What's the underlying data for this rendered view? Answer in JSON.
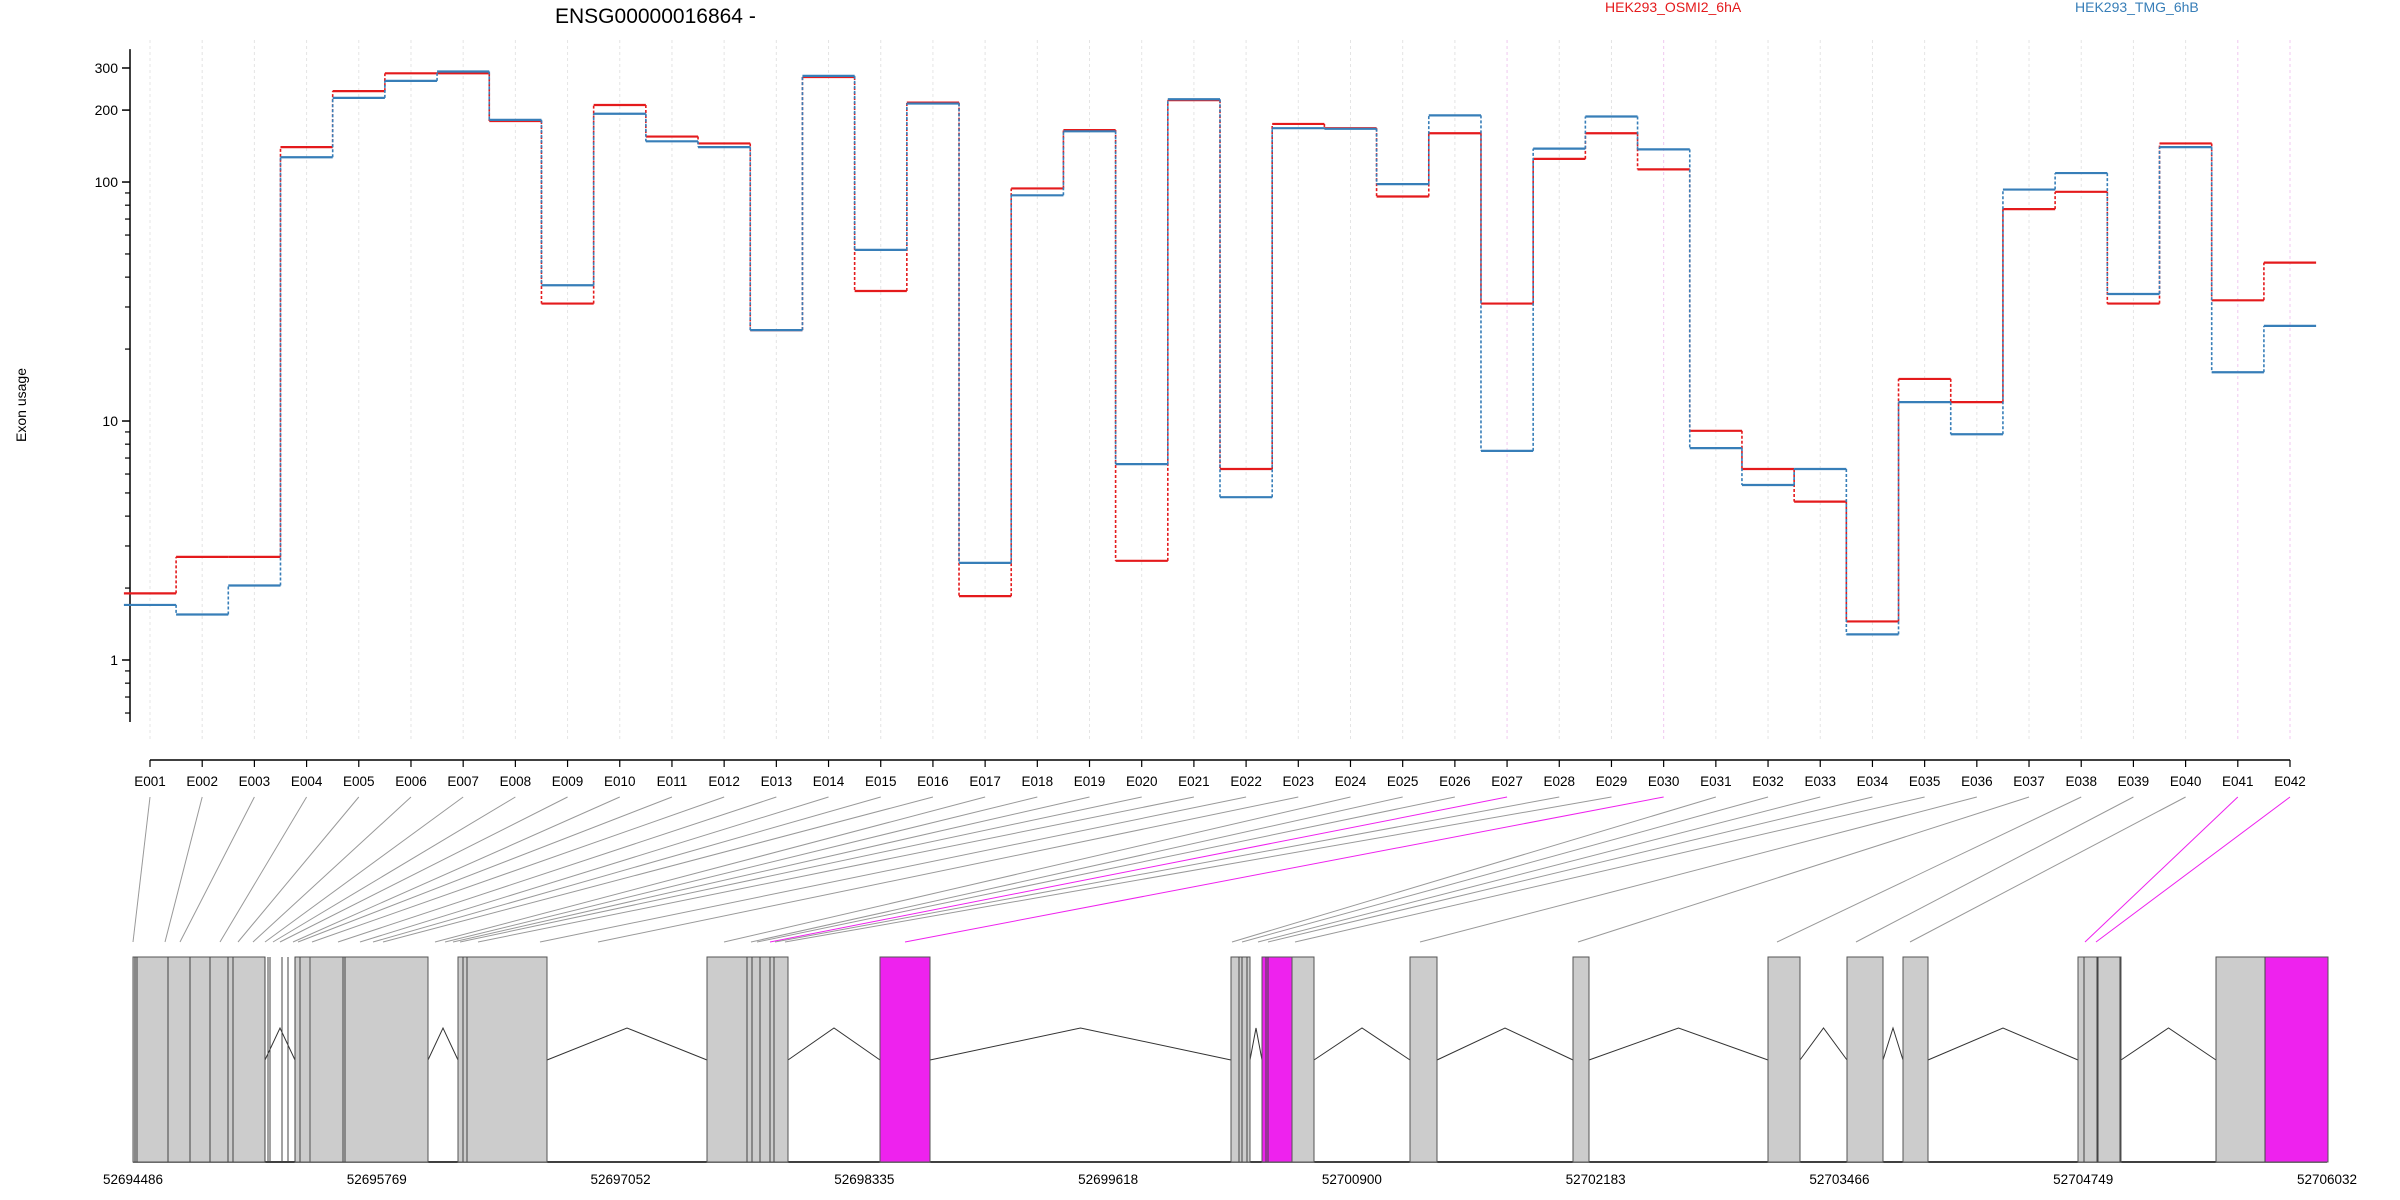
{
  "chart_data": {
    "type": "line",
    "title": "ENSG00000016864 -",
    "ylabel": "Exon usage",
    "xlabel": "",
    "y_scale": "log",
    "ylim": [
      0.55,
      360
    ],
    "yticks": [
      "1",
      "10",
      "100",
      "200",
      "300"
    ],
    "grid": "vertical dotted lines at each exon",
    "legend_position": "top",
    "categories": [
      "E001",
      "E002",
      "E003",
      "E004",
      "E005",
      "E006",
      "E007",
      "E008",
      "E009",
      "E010",
      "E011",
      "E012",
      "E013",
      "E014",
      "E015",
      "E016",
      "E017",
      "E018",
      "E019",
      "E020",
      "E021",
      "E022",
      "E023",
      "E024",
      "E025",
      "E026",
      "E027",
      "E028",
      "E029",
      "E030",
      "E031",
      "E032",
      "E033",
      "E034",
      "E035",
      "E036",
      "E037",
      "E038",
      "E039",
      "E040",
      "E041",
      "E042"
    ],
    "series": [
      {
        "name": "HEK293_OSMI2_6hA",
        "color": "#e41a1c",
        "values": [
          1.9,
          2.7,
          2.7,
          140,
          240,
          285,
          285,
          180,
          31,
          210,
          155,
          145,
          24,
          275,
          35,
          215,
          1.85,
          94,
          165,
          2.6,
          220,
          6.3,
          175,
          168,
          87,
          160,
          31,
          125,
          160,
          113,
          9.1,
          6.3,
          4.6,
          1.45,
          15,
          12,
          77,
          91,
          31,
          145,
          32,
          46
        ]
      },
      {
        "name": "HEK293_TMG_6hB",
        "color": "#377eb8",
        "values": [
          1.7,
          1.55,
          2.05,
          127,
          225,
          265,
          290,
          182,
          37,
          193,
          148,
          140,
          24,
          278,
          52,
          213,
          2.55,
          88,
          163,
          6.6,
          222,
          4.8,
          168,
          167,
          98,
          190,
          7.5,
          138,
          188,
          137,
          7.7,
          5.4,
          6.3,
          1.28,
          12,
          8.8,
          93,
          109,
          34,
          140,
          16,
          25
        ]
      }
    ],
    "highlighted_exons": [
      "E027",
      "E030",
      "E041",
      "E042"
    ],
    "highlight_color": "#ee22ee",
    "genomic_coordinates": [
      "52694486",
      "52695769",
      "52697052",
      "52698335",
      "52699618",
      "52700900",
      "52702183",
      "52703466",
      "52704749",
      "52706032"
    ]
  }
}
